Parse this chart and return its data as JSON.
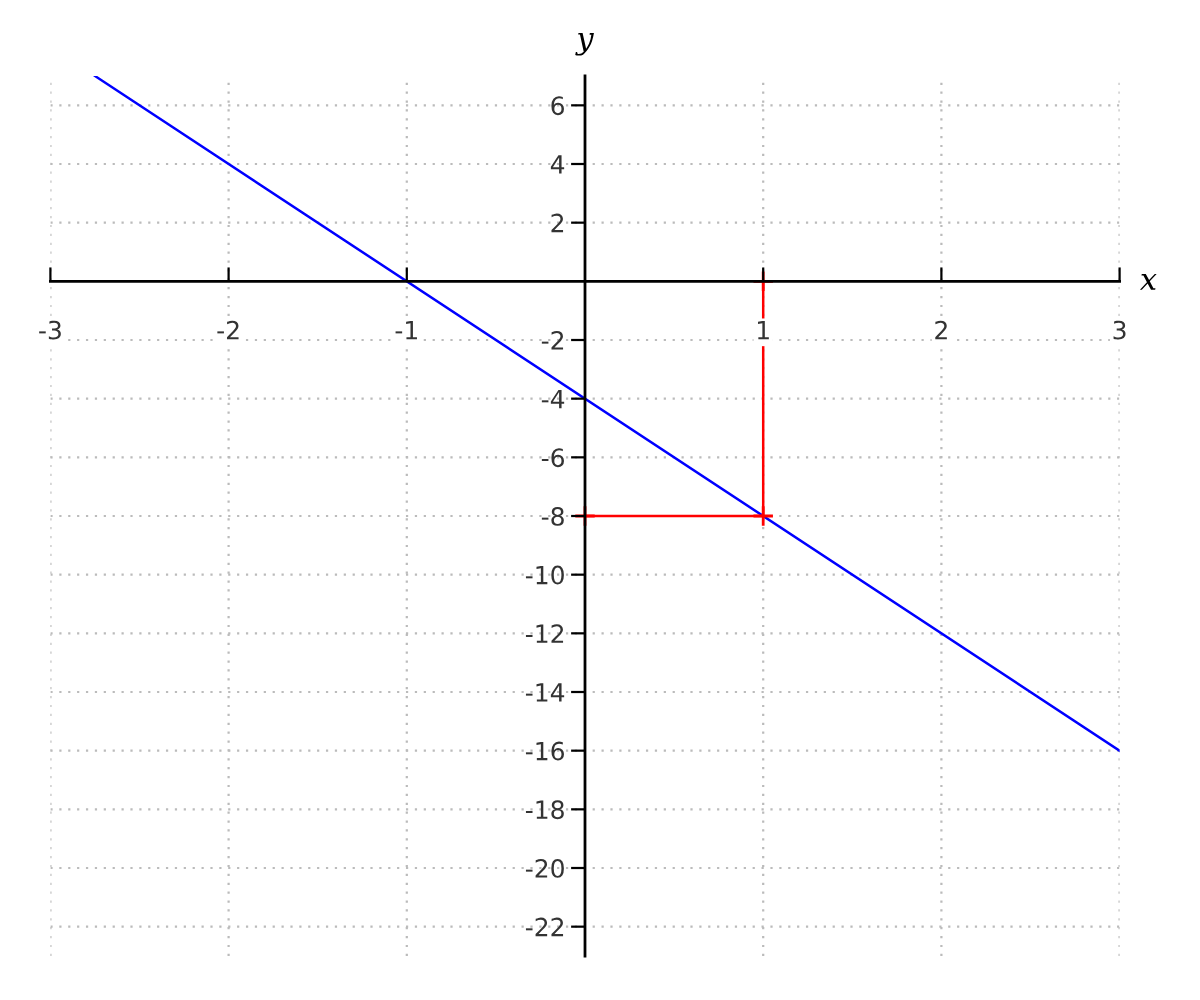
{
  "chart_data": {
    "type": "line",
    "xlabel": "x",
    "ylabel": "y",
    "xlim": [
      -3,
      3
    ],
    "ylim": [
      -23,
      7
    ],
    "xticks": [
      -3,
      -2,
      -1,
      1,
      2,
      3
    ],
    "yticks": [
      6,
      4,
      2,
      -2,
      -4,
      -6,
      -8,
      -10,
      -12,
      -14,
      -16,
      -18,
      -20,
      -22
    ],
    "grid": true,
    "line_style": "solid",
    "series": [
      {
        "x": [
          -2.75,
          3
        ],
        "values": [
          7,
          -16
        ],
        "color": "#0000ff",
        "marker": "none"
      },
      {
        "x": [
          1,
          1,
          0
        ],
        "values": [
          0,
          -8,
          -8
        ],
        "color": "#ff0000",
        "marker": "cross"
      }
    ]
  }
}
